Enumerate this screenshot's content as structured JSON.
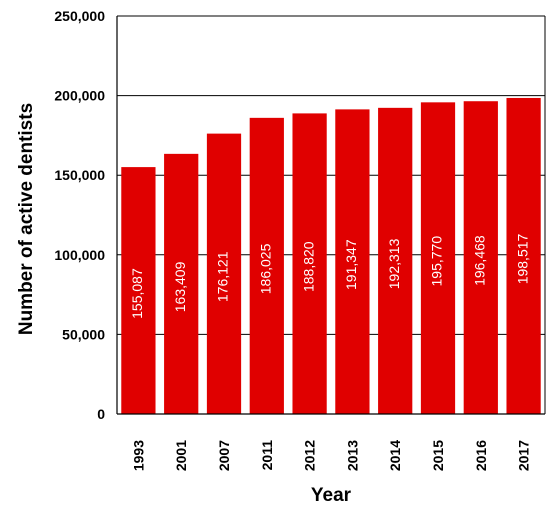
{
  "chart_data": {
    "type": "bar",
    "title": "",
    "xlabel": "Year",
    "ylabel": "Number of active dentists",
    "categories": [
      "1993",
      "2001",
      "2007",
      "2011",
      "2012",
      "2013",
      "2014",
      "2015",
      "2016",
      "2017"
    ],
    "values": [
      155087,
      163409,
      176121,
      186025,
      188820,
      191347,
      192313,
      195770,
      196468,
      198517
    ],
    "data_labels": [
      "155,087",
      "163,409",
      "176,121",
      "186,025",
      "188,820",
      "191,347",
      "192,313",
      "195,770",
      "196,468",
      "198,517"
    ],
    "ylim": [
      0,
      250000
    ],
    "yticks": [
      0,
      50000,
      100000,
      150000,
      200000,
      250000
    ],
    "ytick_labels": [
      "0",
      "50,000",
      "100,000",
      "150,000",
      "200,000",
      "250,000"
    ],
    "grid": true,
    "legend": "none",
    "bar_color": "#E00000",
    "gridline_color": "#000000"
  }
}
